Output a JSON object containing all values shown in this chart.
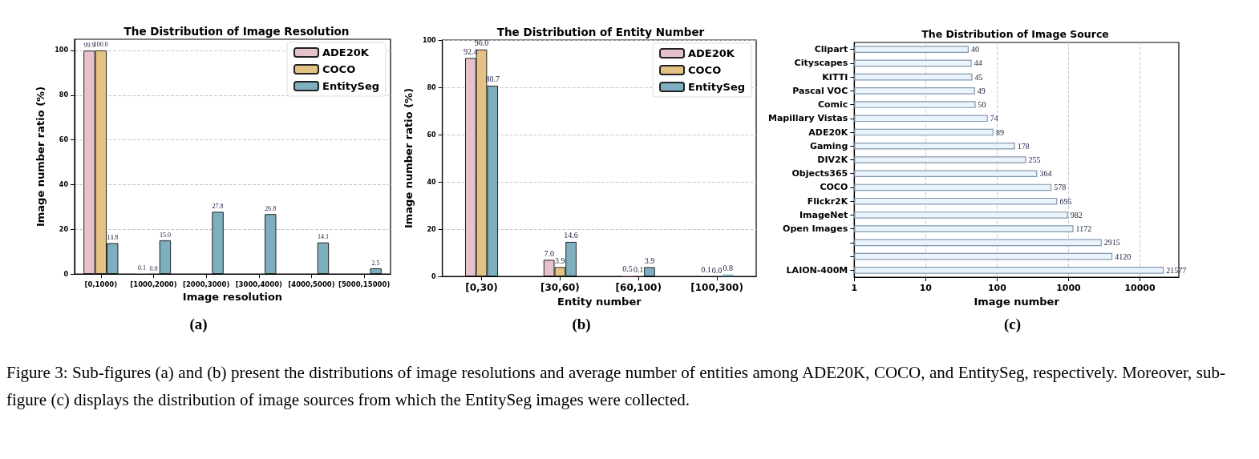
{
  "chart_data": [
    {
      "type": "bar",
      "title": "The Distribution of Image Resolution",
      "xlabel": "Image resolution",
      "ylabel": "Image number ratio (%)",
      "categories": [
        "[0,1000)",
        "[1000,2000)",
        "[2000,3000)",
        "[3000,4000)",
        "[4000,5000)",
        "[5000,15000)"
      ],
      "series": [
        {
          "name": "ADE20K",
          "color": "#e6c3cb",
          "values": [
            99.9,
            0.1,
            0,
            0,
            0,
            0
          ],
          "value_labels": [
            "99.9",
            "0.1",
            null,
            null,
            null,
            null
          ]
        },
        {
          "name": "COCO",
          "color": "#e3c283",
          "values": [
            100.0,
            0.0,
            0,
            0,
            0,
            0
          ],
          "value_labels": [
            "100.0",
            "0.0",
            null,
            null,
            null,
            null
          ]
        },
        {
          "name": "EntitySeg",
          "color": "#7eafbf",
          "values": [
            13.8,
            15.0,
            27.8,
            26.8,
            14.1,
            2.5
          ],
          "value_labels": [
            "13.8",
            "15.0",
            "27.8",
            "26.8",
            "14.1",
            "2.5"
          ]
        }
      ],
      "ylim": [
        0,
        105
      ],
      "yticks": [
        0,
        20,
        40,
        60,
        80,
        100
      ],
      "grid": "y",
      "legend": "top right",
      "annotations": [
        "(a)",
        "Figure 3:  Sub-figures (a) and (b) present the distributions of image resolutions and average number of entities among ADE20K, COCO, and EntitySeg, respectively.  Moreover, sub-figure (c) displays the distribution of image sources from which the EntitySeg images were collected."
      ]
    },
    {
      "type": "bar",
      "title": "The Distribution of Entity Number",
      "xlabel": "Entity number",
      "ylabel": "Image number ratio (%)",
      "categories": [
        "[0,30)",
        "[30,60)",
        "[60,100)",
        "[100,300)"
      ],
      "series": [
        {
          "name": "ADE20K",
          "color": "#e6c3cb",
          "values": [
            92.4,
            7.0,
            0.5,
            0.1
          ],
          "value_labels": [
            "92.4",
            "7.0",
            "0.5",
            "0.1"
          ]
        },
        {
          "name": "COCO",
          "color": "#e3c283",
          "values": [
            96.0,
            3.9,
            0.1,
            0.0
          ],
          "value_labels": [
            "96.0",
            "3.9",
            "0.1",
            "0.0"
          ]
        },
        {
          "name": "EntitySeg",
          "color": "#7eafbf",
          "values": [
            80.7,
            14.6,
            3.9,
            0.8
          ],
          "value_labels": [
            "80.7",
            "14.6",
            "3.9",
            "0.8"
          ]
        }
      ],
      "ylim": [
        0,
        100
      ],
      "yticks": [
        0,
        20,
        40,
        60,
        80,
        100
      ],
      "grid": "y",
      "legend": "top right",
      "annotations": [
        "(b)"
      ]
    },
    {
      "type": "bar",
      "orientation": "horizontal",
      "title": "The Distribution of Image Source",
      "xlabel": "Image number",
      "categories": [
        "Clipart",
        "Cityscapes",
        "KITTI",
        "Pascal VOC",
        "Comic",
        "Mapillary Vistas",
        "ADE20K",
        "Gaming",
        "DIV2K",
        "Objects365",
        "COCO",
        "Flickr2K",
        "ImageNet",
        "Open Images",
        null,
        null,
        "LAION-400M"
      ],
      "values": [
        40,
        44,
        45,
        49,
        50,
        74,
        89,
        178,
        255,
        364,
        578,
        695,
        982,
        1172,
        2915,
        4120,
        21577
      ],
      "color": "#eaf4fc",
      "data_labels": true,
      "log": "x",
      "xlim": [
        1,
        35000
      ],
      "xticks": [
        1,
        10,
        100,
        1000,
        10000
      ],
      "grid": "x",
      "annotations": [
        "(c)"
      ]
    }
  ]
}
